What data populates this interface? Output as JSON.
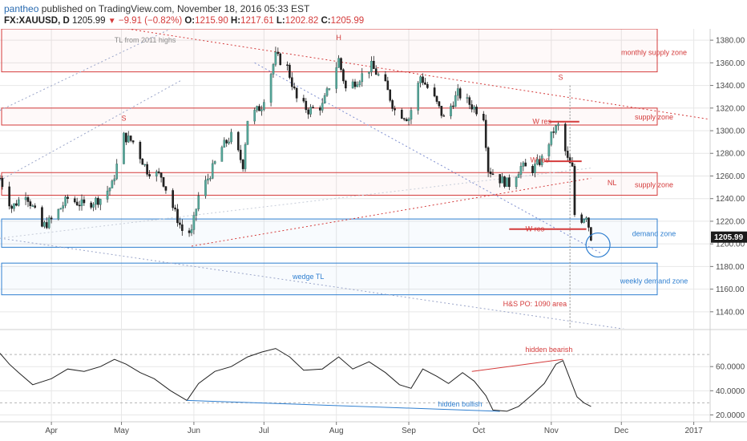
{
  "header": {
    "author": "pantheo",
    "published_text": " published on TradingView.com, November 18, 2016 05:33 EST",
    "symbol": "FX:XAUUSD, D",
    "last": "1205.99",
    "change": "−9.91 (−0.82%)",
    "open_label": "O:",
    "open": "1215.90",
    "high_label": "H:",
    "high": "1217.61",
    "low_label": "L:",
    "low": "1202.82",
    "close_label": "C:",
    "close": "1205.99"
  },
  "chart_data": [
    {
      "type": "candlestick",
      "title": "FX:XAUUSD, D",
      "xlabel": "",
      "ylabel": "",
      "ylim": [
        1125,
        1390
      ],
      "y_ticks": [
        1140,
        1160,
        1180,
        1200,
        1220,
        1240,
        1260,
        1280,
        1300,
        1320,
        1340,
        1360,
        1380
      ],
      "y_tick_labels": [
        "1140.00",
        "1160.00",
        "1180.00",
        "1200.00",
        "1220.00",
        "1240.00",
        "1260.00",
        "1280.00",
        "1300.00",
        "1320.00",
        "1340.00",
        "1360.00",
        "1380.00"
      ],
      "x_tick_labels": [
        "Apr",
        "May",
        "Jun",
        "Jul",
        "Aug",
        "Sep",
        "Oct",
        "Nov",
        "Dec",
        "2017"
      ],
      "x_tick_dates": [
        "2016-04-01",
        "2016-05-01",
        "2016-06-01",
        "2016-07-01",
        "2016-08-01",
        "2016-09-01",
        "2016-10-01",
        "2016-11-01",
        "2016-12-01",
        "2017-01-01"
      ],
      "x_range": [
        "2016-03-10",
        "2017-01-08"
      ],
      "last_price_label": "1205.99",
      "grid": true,
      "close_path": [
        [
          "2016-03-10",
          1258
        ],
        [
          "2016-03-15",
          1232
        ],
        [
          "2016-03-21",
          1245
        ],
        [
          "2016-03-28",
          1215
        ],
        [
          "2016-04-01",
          1221
        ],
        [
          "2016-04-08",
          1240
        ],
        [
          "2016-04-15",
          1234
        ],
        [
          "2016-04-22",
          1240
        ],
        [
          "2016-04-27",
          1252
        ],
        [
          "2016-05-02",
          1295
        ],
        [
          "2016-05-06",
          1290
        ],
        [
          "2016-05-12",
          1265
        ],
        [
          "2016-05-18",
          1260
        ],
        [
          "2016-05-24",
          1227
        ],
        [
          "2016-05-27",
          1212
        ],
        [
          "2016-05-31",
          1210
        ],
        [
          "2016-06-03",
          1242
        ],
        [
          "2016-06-08",
          1262
        ],
        [
          "2016-06-13",
          1285
        ],
        [
          "2016-06-17",
          1295
        ],
        [
          "2016-06-22",
          1270
        ],
        [
          "2016-06-24",
          1310
        ],
        [
          "2016-06-30",
          1322
        ],
        [
          "2016-07-06",
          1366
        ],
        [
          "2016-07-11",
          1356
        ],
        [
          "2016-07-15",
          1328
        ],
        [
          "2016-07-20",
          1318
        ],
        [
          "2016-07-26",
          1322
        ],
        [
          "2016-08-02",
          1363
        ],
        [
          "2016-08-05",
          1337
        ],
        [
          "2016-08-10",
          1345
        ],
        [
          "2016-08-16",
          1357
        ],
        [
          "2016-08-22",
          1340
        ],
        [
          "2016-08-26",
          1318
        ],
        [
          "2016-09-01",
          1311
        ],
        [
          "2016-09-06",
          1348
        ],
        [
          "2016-09-12",
          1328
        ],
        [
          "2016-09-16",
          1311
        ],
        [
          "2016-09-22",
          1333
        ],
        [
          "2016-09-28",
          1322
        ],
        [
          "2016-10-03",
          1313
        ],
        [
          "2016-10-05",
          1266
        ],
        [
          "2016-10-10",
          1257
        ],
        [
          "2016-10-14",
          1253
        ],
        [
          "2016-10-19",
          1268
        ],
        [
          "2016-10-24",
          1266
        ],
        [
          "2016-10-28",
          1275
        ],
        [
          "2016-11-02",
          1300
        ],
        [
          "2016-11-04",
          1304
        ],
        [
          "2016-11-08",
          1274
        ],
        [
          "2016-11-10",
          1266
        ],
        [
          "2016-11-11",
          1226
        ],
        [
          "2016-11-14",
          1222
        ],
        [
          "2016-11-16",
          1226
        ],
        [
          "2016-11-17",
          1216
        ],
        [
          "2016-11-18",
          1206
        ]
      ],
      "annotations": [
        {
          "text": "TL from 2011 highs"
        },
        {
          "text": "H"
        },
        {
          "text": "S"
        },
        {
          "text": "S"
        },
        {
          "text": "monthly supply zone"
        },
        {
          "text": "supply zone"
        },
        {
          "text": "supply zone"
        },
        {
          "text": "W res"
        },
        {
          "text": "W res"
        },
        {
          "text": "W res"
        },
        {
          "text": "NL"
        },
        {
          "text": "demand zone"
        },
        {
          "text": "weekly demand zone"
        },
        {
          "text": "wedge TL"
        },
        {
          "text": "H&S PO: 1090 area"
        }
      ]
    },
    {
      "type": "line",
      "title": "",
      "ylim": [
        15,
        90
      ],
      "y_ticks": [
        20,
        40,
        60
      ],
      "y_tick_labels": [
        "20.0000",
        "40.0000",
        "60.0000"
      ],
      "reference_lines": [
        30,
        70
      ],
      "points": [
        [
          "2016-03-10",
          71
        ],
        [
          "2016-03-14",
          62
        ],
        [
          "2016-03-18",
          55
        ],
        [
          "2016-03-24",
          45
        ],
        [
          "2016-04-01",
          50
        ],
        [
          "2016-04-08",
          58
        ],
        [
          "2016-04-15",
          56
        ],
        [
          "2016-04-22",
          60
        ],
        [
          "2016-04-28",
          66
        ],
        [
          "2016-05-03",
          62
        ],
        [
          "2016-05-09",
          55
        ],
        [
          "2016-05-15",
          50
        ],
        [
          "2016-05-22",
          40
        ],
        [
          "2016-05-29",
          32
        ],
        [
          "2016-06-03",
          46
        ],
        [
          "2016-06-10",
          56
        ],
        [
          "2016-06-17",
          60
        ],
        [
          "2016-06-24",
          68
        ],
        [
          "2016-06-30",
          72
        ],
        [
          "2016-07-06",
          75
        ],
        [
          "2016-07-12",
          68
        ],
        [
          "2016-07-18",
          57
        ],
        [
          "2016-07-26",
          58
        ],
        [
          "2016-08-02",
          68
        ],
        [
          "2016-08-08",
          58
        ],
        [
          "2016-08-15",
          64
        ],
        [
          "2016-08-22",
          55
        ],
        [
          "2016-08-28",
          45
        ],
        [
          "2016-09-02",
          42
        ],
        [
          "2016-09-07",
          58
        ],
        [
          "2016-09-13",
          52
        ],
        [
          "2016-09-18",
          46
        ],
        [
          "2016-09-24",
          55
        ],
        [
          "2016-09-29",
          48
        ],
        [
          "2016-10-04",
          36
        ],
        [
          "2016-10-07",
          24
        ],
        [
          "2016-10-13",
          23
        ],
        [
          "2016-10-18",
          27
        ],
        [
          "2016-10-24",
          37
        ],
        [
          "2016-10-29",
          46
        ],
        [
          "2016-11-03",
          62
        ],
        [
          "2016-11-06",
          65
        ],
        [
          "2016-11-09",
          50
        ],
        [
          "2016-11-12",
          35
        ],
        [
          "2016-11-15",
          30
        ],
        [
          "2016-11-18",
          27
        ]
      ],
      "annotations": [
        {
          "text": "hidden bearish"
        },
        {
          "text": "hidden bullish"
        }
      ]
    }
  ],
  "colors": {
    "bull_candle": "#56a89b",
    "bear_candle": "#222222",
    "resistance": "#d43b3b",
    "support": "#2f7fd0",
    "grid": "#e7e7e7"
  }
}
